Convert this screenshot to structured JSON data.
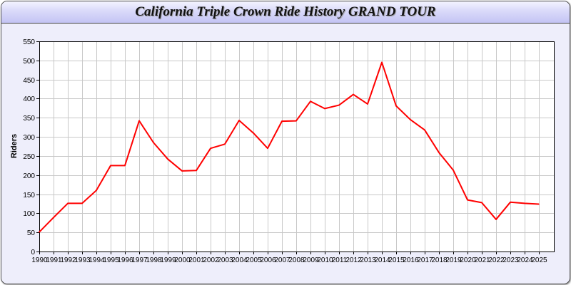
{
  "chart_data": {
    "type": "line",
    "title": "California Triple Crown Ride History GRAND TOUR",
    "xlabel": "",
    "ylabel": "Riders",
    "ylim": [
      0,
      550
    ],
    "yticks": [
      0,
      50,
      100,
      150,
      200,
      250,
      300,
      350,
      400,
      450,
      500,
      550
    ],
    "grid": true,
    "x": [
      "1990",
      "1991",
      "1992",
      "1993",
      "1994",
      "1995",
      "1996",
      "1997",
      "1998",
      "1999",
      "2000",
      "2001",
      "2002",
      "2003",
      "2004",
      "2005",
      "2006",
      "2007",
      "2008",
      "2009",
      "2010",
      "2011",
      "2012",
      "2013",
      "2014",
      "2015",
      "2016",
      "2017",
      "2018",
      "2019",
      "2020",
      "2021",
      "2022",
      "2023",
      "2024",
      "2025"
    ],
    "series": [
      {
        "color": "#ff0000",
        "values": [
          51,
          89,
          126,
          126,
          160,
          225,
          225,
          342,
          285,
          242,
          211,
          212,
          270,
          281,
          343,
          310,
          270,
          341,
          342,
          393,
          374,
          383,
          411,
          386,
          495,
          381,
          345,
          318,
          259,
          213,
          135,
          128,
          84,
          129,
          126,
          124
        ]
      }
    ]
  }
}
